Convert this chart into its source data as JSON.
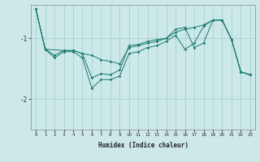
{
  "xlabel": "Humidex (Indice chaleur)",
  "bg_color": "#cce8e8",
  "line_color": "#1a7a6e",
  "grid_color": "#aad4d4",
  "yticks": [
    -2,
    -1
  ],
  "ylim": [
    -2.5,
    -0.45
  ],
  "xlim": [
    -0.5,
    23.5
  ],
  "line1_x": [
    0,
    1,
    2,
    3,
    4,
    5,
    6,
    7,
    8,
    9,
    10,
    11,
    12,
    13,
    14,
    15,
    16,
    17,
    18,
    19,
    20,
    21,
    22,
    23
  ],
  "line1_y": [
    -0.52,
    -1.18,
    -1.28,
    -1.2,
    -1.2,
    -1.25,
    -1.65,
    -1.58,
    -1.6,
    -1.52,
    -1.12,
    -1.1,
    -1.05,
    -1.02,
    -1.0,
    -0.85,
    -0.82,
    -1.15,
    -1.08,
    -0.7,
    -0.7,
    -1.02,
    -1.55,
    -1.6
  ],
  "line2_x": [
    0,
    1,
    3,
    4,
    5,
    6,
    7,
    8,
    9,
    10,
    11,
    12,
    13,
    14,
    15,
    16,
    17,
    18,
    19,
    20,
    21,
    22,
    23
  ],
  "line2_y": [
    -0.52,
    -1.18,
    -1.2,
    -1.2,
    -1.25,
    -1.28,
    -1.35,
    -1.38,
    -1.42,
    -1.15,
    -1.12,
    -1.08,
    -1.05,
    -1.0,
    -0.9,
    -0.85,
    -0.82,
    -0.78,
    -0.7,
    -0.7,
    -1.02,
    -1.55,
    -1.6
  ],
  "line3_x": [
    0,
    1,
    2,
    3,
    4,
    5,
    6,
    7,
    8,
    9,
    10,
    11,
    12,
    13,
    14,
    15,
    16,
    17,
    18,
    19,
    20,
    21,
    22,
    23
  ],
  "line3_y": [
    -0.52,
    -1.18,
    -1.32,
    -1.22,
    -1.22,
    -1.32,
    -1.82,
    -1.68,
    -1.68,
    -1.62,
    -1.25,
    -1.22,
    -1.15,
    -1.12,
    -1.05,
    -0.95,
    -1.18,
    -1.08,
    -0.8,
    -0.7,
    -0.7,
    -1.02,
    -1.55,
    -1.6
  ]
}
